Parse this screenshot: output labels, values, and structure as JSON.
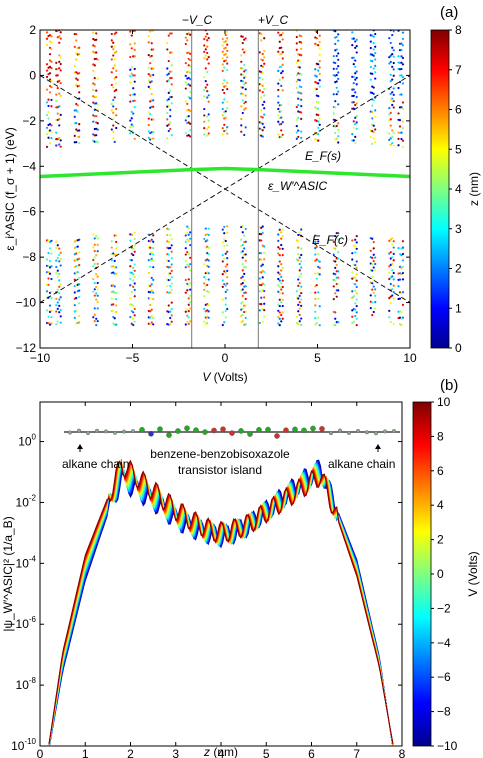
{
  "chart_data": [
    {
      "type": "scatter",
      "panel_label": "(a)",
      "xlabel_var": "V",
      "xlabel_unit": " (Volts)",
      "ylabel": "ε_i^ASIC (f_σ + 1) (eV)",
      "xlim": [
        -10,
        10
      ],
      "ylim": [
        -12,
        2
      ],
      "xticks": [
        "−10",
        "−5",
        "0",
        "5",
        "10"
      ],
      "xtick_values": [
        -10,
        -5,
        0,
        5,
        10
      ],
      "yticks": [
        "2",
        "0",
        "−2",
        "−4",
        "−6",
        "−8",
        "−10",
        "−12"
      ],
      "ytick_values": [
        2,
        0,
        -2,
        -4,
        -6,
        -8,
        -10,
        -12
      ],
      "annotations": {
        "minus_vc": "−V_C",
        "plus_vc": "+V_C",
        "ef_s": "E_F(s)",
        "ef_c": "E_F(c)",
        "eps_w": "ε_W′^ASIC"
      },
      "vc_lines": [
        -1.8,
        1.8
      ],
      "fermi_lines": [
        {
          "name": "E_F(s)",
          "x": [
            -10,
            10
          ],
          "y": [
            0,
            -10
          ]
        },
        {
          "name": "E_F(c)",
          "x": [
            -10,
            10
          ],
          "y": [
            -10,
            0
          ]
        }
      ],
      "highlight_series": {
        "name": "ε_W′^ASIC",
        "color": "#2ee62e",
        "x": [
          -10,
          -6,
          -2,
          0,
          2,
          6,
          10
        ],
        "y": [
          -4.45,
          -4.3,
          -4.15,
          -4.1,
          -4.15,
          -4.3,
          -4.45
        ]
      },
      "level_bands": {
        "occupied_center_top": -6.5,
        "occupied_edge_top": -7.2,
        "bottom": -11,
        "unoccupied_bottom": -2.6,
        "unoccupied_mid": -1,
        "top": 2,
        "level_spacing": 0.28,
        "voltage_samples": [
          -9.5,
          -9,
          -8,
          -7,
          -6,
          -5,
          -4,
          -3,
          -2,
          -1,
          0,
          1,
          2,
          3,
          4,
          5,
          6,
          7,
          8,
          9,
          9.5
        ]
      },
      "colorbar": {
        "label": "z (nm)",
        "range": [
          0,
          8
        ],
        "ticks": [
          "0",
          "1",
          "2",
          "3",
          "4",
          "5",
          "6",
          "7",
          "8"
        ],
        "colormap": "jet"
      }
    },
    {
      "type": "line",
      "panel_label": "(b)",
      "xlabel_var": "z",
      "xlabel_unit": " (nm)",
      "ylabel": "|ψ_W′^ASIC|² (1/a_B)",
      "xlim": [
        0,
        8
      ],
      "ylim_log10": [
        -10,
        1.3
      ],
      "xticks": [
        "0",
        "1",
        "2",
        "3",
        "4",
        "5",
        "6",
        "7",
        "8"
      ],
      "xtick_values": [
        0,
        1,
        2,
        3,
        4,
        5,
        6,
        7,
        8
      ],
      "yticks": [
        "10^0",
        "10^-2",
        "10^-4",
        "10^-6",
        "10^-8",
        "10^-10"
      ],
      "ytick_values": [
        0,
        -2,
        -4,
        -6,
        -8,
        -10
      ],
      "scale": "log",
      "series_voltages": [
        -10,
        -9,
        -8,
        -7,
        -6,
        -5,
        -4,
        -3,
        -2,
        -1,
        0,
        1,
        2,
        3,
        4,
        5,
        6,
        7,
        8,
        9,
        10
      ],
      "envelope_log10": {
        "z": [
          0.2,
          0.5,
          1.0,
          1.5,
          1.8,
          2.2,
          2.6,
          3.0,
          3.4,
          3.8,
          4.0,
          4.2,
          4.6,
          5.0,
          5.4,
          5.8,
          6.2,
          6.5,
          7.0,
          7.5,
          7.8
        ],
        "low_voltage_side": [
          -10,
          -7.5,
          -4.5,
          -2.3,
          -1.2,
          -1.6,
          -2.0,
          -2.5,
          -2.8,
          -3.0,
          -3.05,
          -3.0,
          -2.8,
          -2.4,
          -2.0,
          -1.6,
          -1.2,
          -2.3,
          -4.5,
          -7.5,
          -10
        ],
        "high_voltage_side": [
          -10,
          -7.0,
          -3.8,
          -1.9,
          -0.8,
          -1.3,
          -1.8,
          -2.3,
          -2.7,
          -3.0,
          -3.05,
          -3.0,
          -2.7,
          -2.2,
          -1.7,
          -1.2,
          -0.8,
          -1.9,
          -3.8,
          -7.0,
          -10
        ]
      },
      "annotations": {
        "alkane_left": "alkane chain",
        "alkane_right": "alkane chain",
        "island_line1": "benzene-benzobisoxazole",
        "island_line2": "transistor island"
      },
      "colorbar": {
        "label": "V (Volts)",
        "range": [
          -10,
          10
        ],
        "ticks": [
          "10",
          "8",
          "6",
          "4",
          "2",
          "0",
          "−2",
          "−4",
          "−6",
          "−8",
          "−10"
        ],
        "colormap": "jet"
      }
    }
  ]
}
